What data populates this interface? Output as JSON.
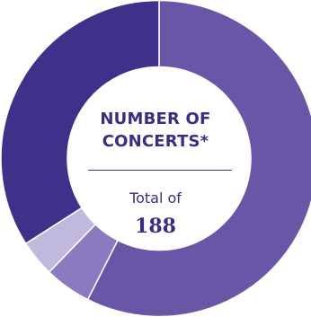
{
  "chart_data": {
    "type": "pie",
    "title_lines": [
      "NUMBER OF",
      "CONCERTS*"
    ],
    "total_label": "Total of",
    "total_value": "188",
    "values": [
      108,
      9,
      7,
      64
    ],
    "colors": [
      "#6a56a6",
      "#8b7abf",
      "#c1b8de",
      "#41308a"
    ]
  }
}
